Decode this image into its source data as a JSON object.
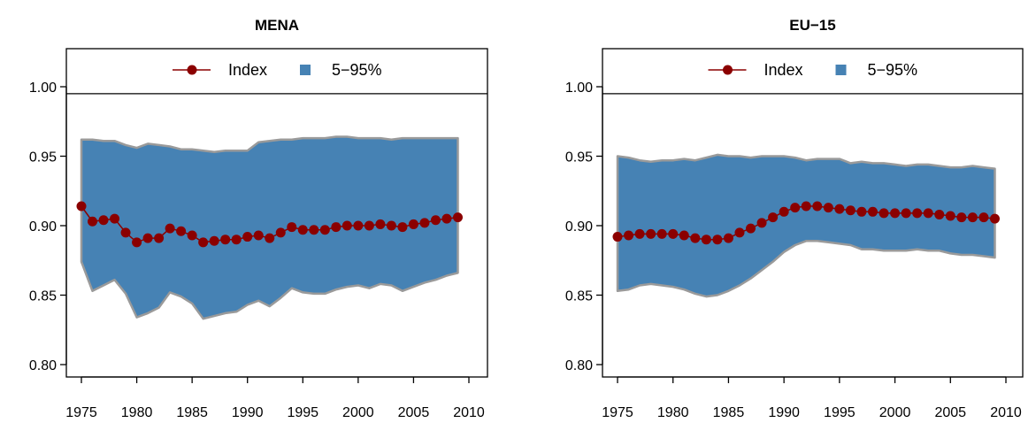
{
  "chart_data": [
    {
      "type": "line",
      "title": "MENA",
      "x": [
        1975,
        1976,
        1977,
        1978,
        1979,
        1980,
        1981,
        1982,
        1983,
        1984,
        1985,
        1986,
        1987,
        1988,
        1989,
        1990,
        1991,
        1992,
        1993,
        1994,
        1995,
        1996,
        1997,
        1998,
        1999,
        2000,
        2001,
        2002,
        2003,
        2004,
        2005,
        2006,
        2007,
        2008,
        2009
      ],
      "series": [
        {
          "name": "Index",
          "kind": "line-points",
          "color": "#8B0000",
          "values": [
            0.914,
            0.903,
            0.904,
            0.905,
            0.895,
            0.888,
            0.891,
            0.891,
            0.898,
            0.896,
            0.893,
            0.888,
            0.889,
            0.89,
            0.89,
            0.892,
            0.893,
            0.891,
            0.895,
            0.899,
            0.897,
            0.897,
            0.897,
            0.899,
            0.9,
            0.9,
            0.9,
            0.901,
            0.9,
            0.899,
            0.901,
            0.902,
            0.904,
            0.905,
            0.906
          ]
        },
        {
          "name": "5−95%",
          "kind": "band",
          "color": "#4682B4",
          "lower": [
            0.874,
            0.853,
            0.857,
            0.861,
            0.851,
            0.834,
            0.837,
            0.841,
            0.852,
            0.849,
            0.844,
            0.833,
            0.835,
            0.837,
            0.838,
            0.843,
            0.846,
            0.842,
            0.848,
            0.855,
            0.852,
            0.851,
            0.851,
            0.854,
            0.856,
            0.857,
            0.855,
            0.858,
            0.857,
            0.853,
            0.856,
            0.859,
            0.861,
            0.864,
            0.866
          ],
          "upper": [
            0.962,
            0.962,
            0.961,
            0.961,
            0.958,
            0.956,
            0.959,
            0.958,
            0.957,
            0.955,
            0.955,
            0.954,
            0.953,
            0.954,
            0.954,
            0.954,
            0.96,
            0.961,
            0.962,
            0.962,
            0.963,
            0.963,
            0.963,
            0.964,
            0.964,
            0.963,
            0.963,
            0.963,
            0.962,
            0.963,
            0.963,
            0.963,
            0.963,
            0.963,
            0.963
          ]
        }
      ],
      "ylim": [
        0.8,
        1.02
      ],
      "xlim": [
        1975,
        2010
      ],
      "xticks": [
        1975,
        1980,
        1985,
        1990,
        1995,
        2000,
        2005,
        2010
      ],
      "yticks": [
        0.8,
        0.85,
        0.9,
        0.95,
        1.0
      ],
      "ytick_labels": [
        "0.80",
        "0.85",
        "0.90",
        "0.95",
        "1.00"
      ],
      "hline": 0.995,
      "legend_position": "top-center"
    },
    {
      "type": "line",
      "title": "EU−15",
      "x": [
        1975,
        1976,
        1977,
        1978,
        1979,
        1980,
        1981,
        1982,
        1983,
        1984,
        1985,
        1986,
        1987,
        1988,
        1989,
        1990,
        1991,
        1992,
        1993,
        1994,
        1995,
        1996,
        1997,
        1998,
        1999,
        2000,
        2001,
        2002,
        2003,
        2004,
        2005,
        2006,
        2007,
        2008,
        2009
      ],
      "series": [
        {
          "name": "Index",
          "kind": "line-points",
          "color": "#8B0000",
          "values": [
            0.892,
            0.893,
            0.894,
            0.894,
            0.894,
            0.894,
            0.893,
            0.891,
            0.89,
            0.89,
            0.891,
            0.895,
            0.898,
            0.902,
            0.906,
            0.91,
            0.913,
            0.914,
            0.914,
            0.913,
            0.912,
            0.911,
            0.91,
            0.91,
            0.909,
            0.909,
            0.909,
            0.909,
            0.909,
            0.908,
            0.907,
            0.906,
            0.906,
            0.906,
            0.905
          ]
        },
        {
          "name": "5−95%",
          "kind": "band",
          "color": "#4682B4",
          "lower": [
            0.853,
            0.854,
            0.857,
            0.858,
            0.857,
            0.856,
            0.854,
            0.851,
            0.849,
            0.85,
            0.853,
            0.857,
            0.862,
            0.868,
            0.874,
            0.881,
            0.886,
            0.889,
            0.889,
            0.888,
            0.887,
            0.886,
            0.883,
            0.883,
            0.882,
            0.882,
            0.882,
            0.883,
            0.882,
            0.882,
            0.88,
            0.879,
            0.879,
            0.878,
            0.877
          ],
          "upper": [
            0.95,
            0.949,
            0.947,
            0.946,
            0.947,
            0.947,
            0.948,
            0.947,
            0.949,
            0.951,
            0.95,
            0.95,
            0.949,
            0.95,
            0.95,
            0.95,
            0.949,
            0.947,
            0.948,
            0.948,
            0.948,
            0.945,
            0.946,
            0.945,
            0.945,
            0.944,
            0.943,
            0.944,
            0.944,
            0.943,
            0.942,
            0.942,
            0.943,
            0.942,
            0.941
          ]
        }
      ],
      "ylim": [
        0.8,
        1.02
      ],
      "xlim": [
        1975,
        2010
      ],
      "xticks": [
        1975,
        1980,
        1985,
        1990,
        1995,
        2000,
        2005,
        2010
      ],
      "yticks": [
        0.8,
        0.85,
        0.9,
        0.95,
        1.0
      ],
      "ytick_labels": [
        "0.80",
        "0.85",
        "0.90",
        "0.95",
        "1.00"
      ],
      "hline": 0.995,
      "legend_position": "top-center"
    }
  ]
}
